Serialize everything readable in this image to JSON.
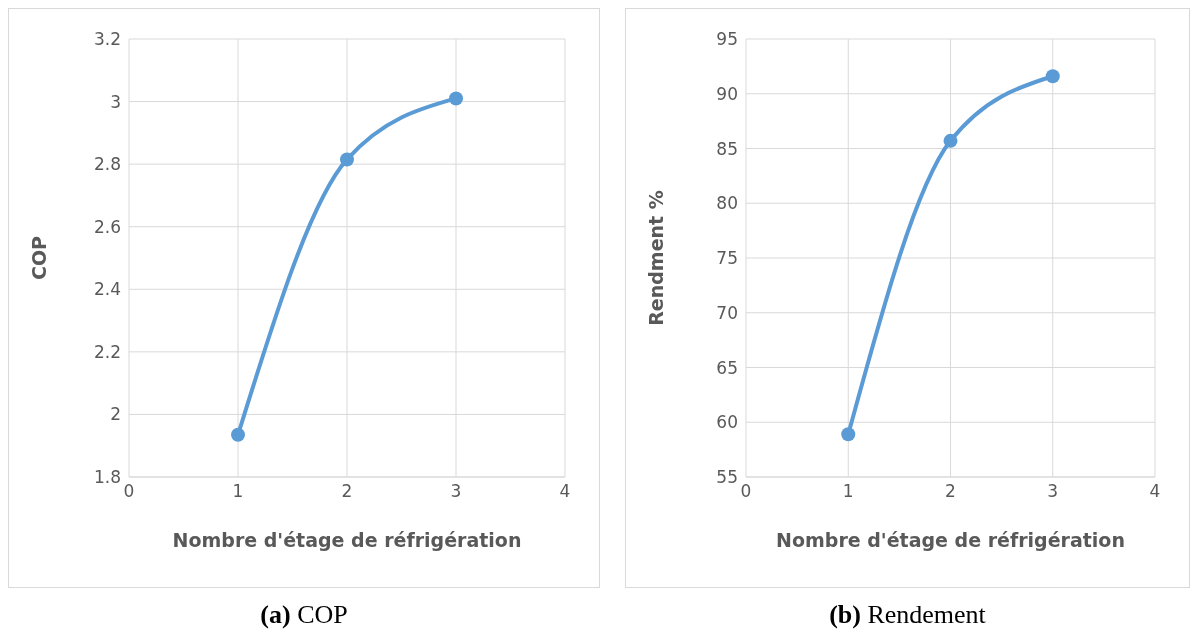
{
  "chart_data": [
    {
      "type": "line",
      "title": "(a) COP",
      "xlabel": "Nombre d'étage de réfrigération",
      "ylabel": "COP",
      "x": [
        1,
        2,
        3
      ],
      "series": [
        {
          "color": "#5b9bd5",
          "values": [
            1.935,
            2.815,
            3.01
          ]
        }
      ],
      "xlim": [
        0,
        4
      ],
      "xticks": [
        0,
        1,
        2,
        3,
        4
      ],
      "ylim": [
        1.8,
        3.2
      ],
      "yticks": [
        1.8,
        2,
        2.2,
        2.4,
        2.6,
        2.8,
        3,
        3.2
      ],
      "grid": true,
      "marker": "circle",
      "legend": false
    },
    {
      "type": "line",
      "title": "(b) Rendement",
      "xlabel": "Nombre d'étage de réfrigération",
      "ylabel": "Rendment %",
      "x": [
        1,
        2,
        3
      ],
      "series": [
        {
          "color": "#5b9bd5",
          "values": [
            58.9,
            85.7,
            91.6
          ]
        }
      ],
      "xlim": [
        0,
        4
      ],
      "xticks": [
        0,
        1,
        2,
        3,
        4
      ],
      "ylim": [
        55,
        95
      ],
      "yticks": [
        55,
        60,
        65,
        70,
        75,
        80,
        85,
        90,
        95
      ],
      "grid": true,
      "marker": "circle",
      "legend": false
    }
  ]
}
